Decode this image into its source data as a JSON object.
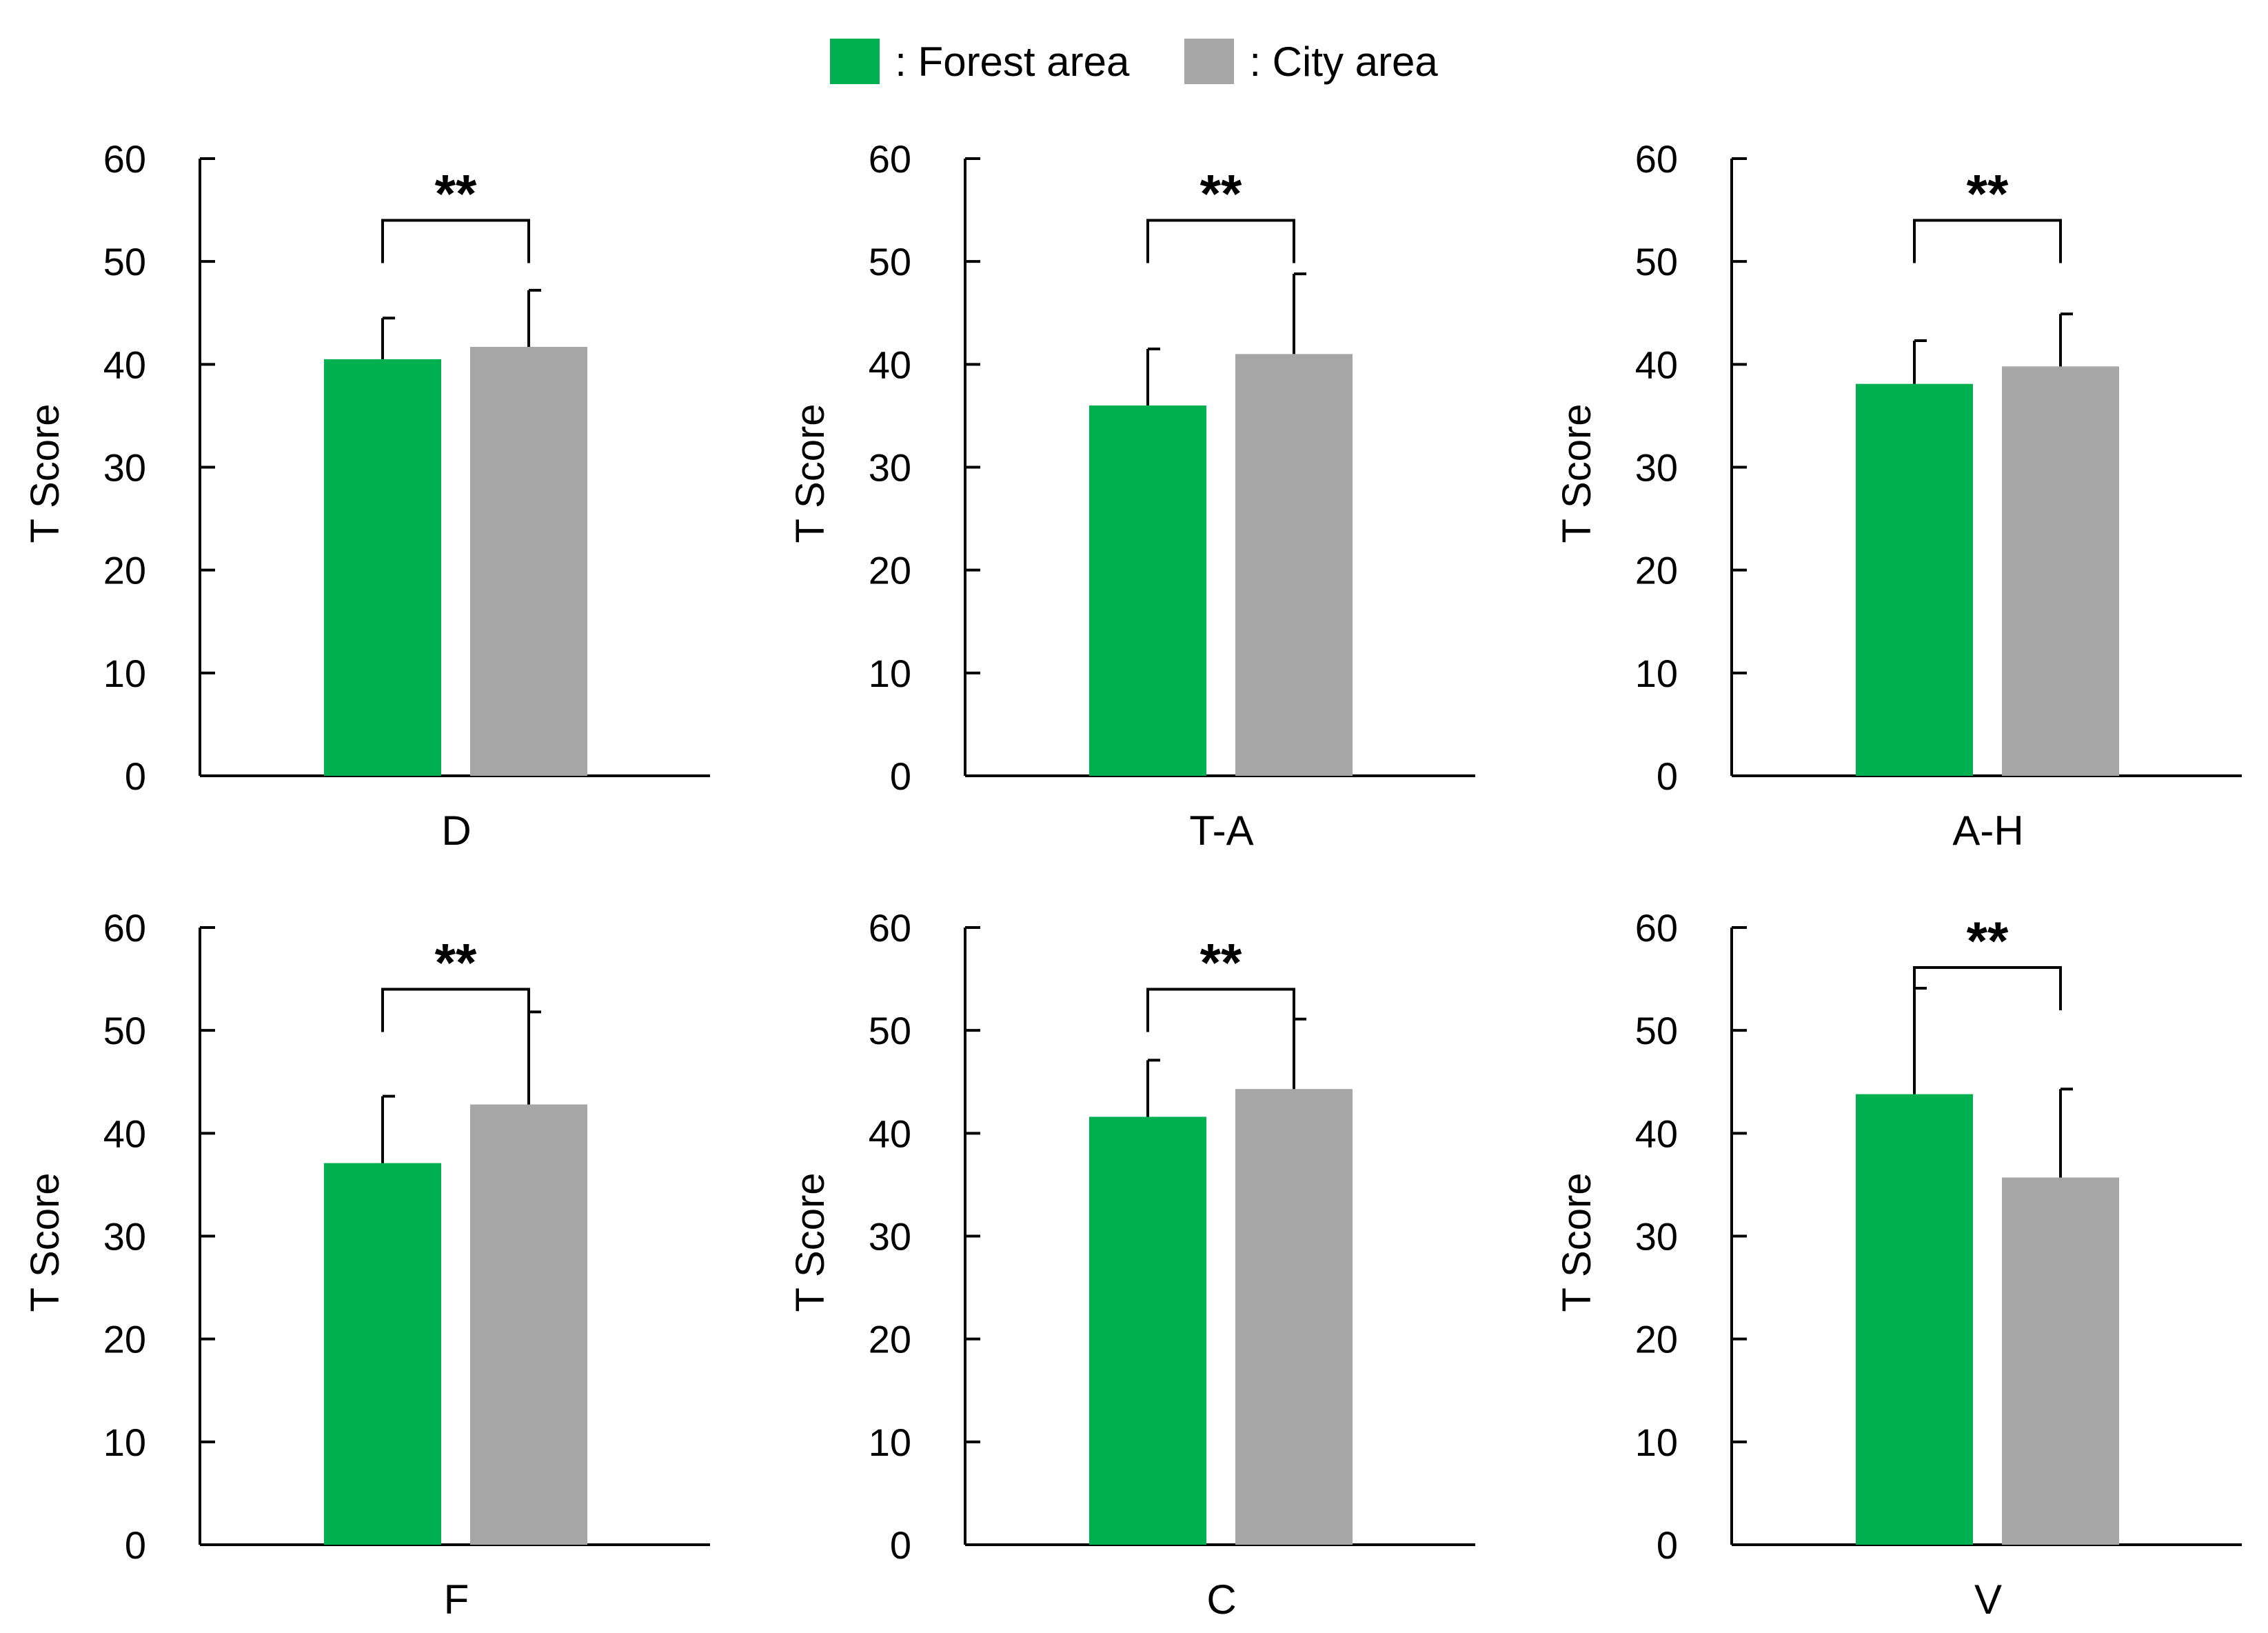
{
  "legend": {
    "forest_label": ": Forest area",
    "city_label": ": City area"
  },
  "colors": {
    "forest": "#00b050",
    "city": "#a6a6a6",
    "axis": "#000000"
  },
  "chart_data": [
    {
      "type": "bar",
      "category": "D",
      "ylabel": "T Score",
      "ylim": [
        0,
        60
      ],
      "yticks": [
        0,
        10,
        20,
        30,
        40,
        50,
        60
      ],
      "series": [
        {
          "name": "Forest area",
          "values": [
            40.5
          ],
          "error": [
            4.0
          ]
        },
        {
          "name": "City area",
          "values": [
            41.7
          ],
          "error": [
            5.5
          ]
        }
      ],
      "significance": "**"
    },
    {
      "type": "bar",
      "category": "T-A",
      "ylabel": "T Score",
      "ylim": [
        0,
        60
      ],
      "yticks": [
        0,
        10,
        20,
        30,
        40,
        50,
        60
      ],
      "series": [
        {
          "name": "Forest area",
          "values": [
            36.0
          ],
          "error": [
            5.5
          ]
        },
        {
          "name": "City area",
          "values": [
            41.0
          ],
          "error": [
            7.8
          ]
        }
      ],
      "significance": "**"
    },
    {
      "type": "bar",
      "category": "A-H",
      "ylabel": "T Score",
      "ylim": [
        0,
        60
      ],
      "yticks": [
        0,
        10,
        20,
        30,
        40,
        50,
        60
      ],
      "series": [
        {
          "name": "Forest area",
          "values": [
            38.1
          ],
          "error": [
            4.2
          ]
        },
        {
          "name": "City area",
          "values": [
            39.8
          ],
          "error": [
            5.1
          ]
        }
      ],
      "significance": "**"
    },
    {
      "type": "bar",
      "category": "F",
      "ylabel": "T Score",
      "ylim": [
        0,
        60
      ],
      "yticks": [
        0,
        10,
        20,
        30,
        40,
        50,
        60
      ],
      "series": [
        {
          "name": "Forest area",
          "values": [
            37.1
          ],
          "error": [
            6.5
          ]
        },
        {
          "name": "City area",
          "values": [
            42.8
          ],
          "error": [
            9.0
          ]
        }
      ],
      "significance": "**"
    },
    {
      "type": "bar",
      "category": "C",
      "ylabel": "T Score",
      "ylim": [
        0,
        60
      ],
      "yticks": [
        0,
        10,
        20,
        30,
        40,
        50,
        60
      ],
      "series": [
        {
          "name": "Forest area",
          "values": [
            41.6
          ],
          "error": [
            5.5
          ]
        },
        {
          "name": "City area",
          "values": [
            44.3
          ],
          "error": [
            6.8
          ]
        }
      ],
      "significance": "**"
    },
    {
      "type": "bar",
      "category": "V",
      "ylabel": "T Score",
      "ylim": [
        0,
        60
      ],
      "yticks": [
        0,
        10,
        20,
        30,
        40,
        50,
        60
      ],
      "series": [
        {
          "name": "Forest area",
          "values": [
            43.8
          ],
          "error": [
            10.3
          ]
        },
        {
          "name": "City area",
          "values": [
            35.7
          ],
          "error": [
            8.6
          ]
        }
      ],
      "significance": "**"
    }
  ]
}
